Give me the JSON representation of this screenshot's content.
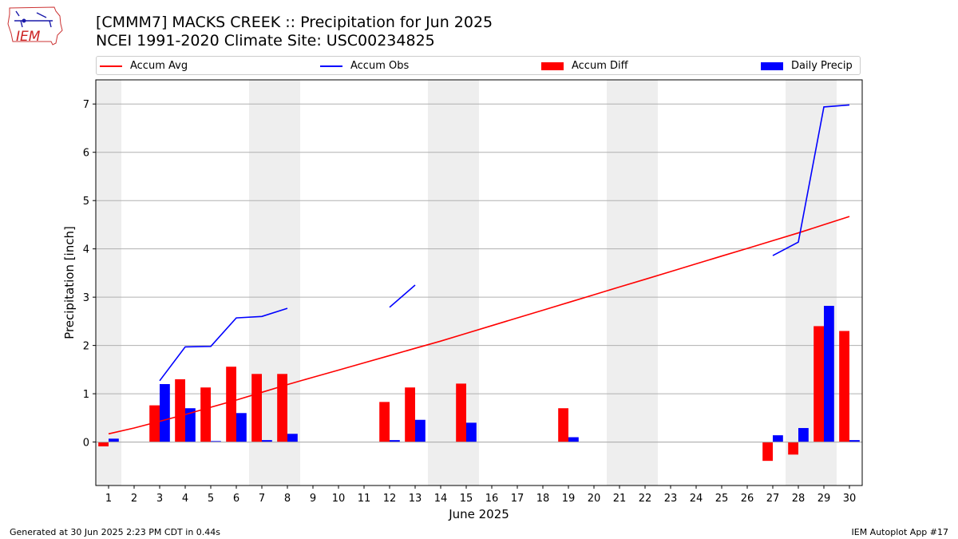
{
  "title_line1": "[CMMM7] MACKS CREEK :: Precipitation for Jun 2025",
  "title_line2": "NCEI 1991-2020 Climate Site: USC00234825",
  "logo_text": "IEM",
  "footer_left": "Generated at 30 Jun 2025 2:23 PM CDT in 0.44s",
  "footer_right": "IEM Autoplot App #17",
  "colors": {
    "avg": "#ff0000",
    "obs": "#0000ff",
    "diff": "#ff0000",
    "daily": "#0000ff",
    "weekend_shade": "#eeeeee",
    "grid": "#b0b0b0"
  },
  "chart_data": {
    "type": "bar",
    "title": "[CMMM7] MACKS CREEK :: Precipitation for Jun 2025",
    "subtitle": "NCEI 1991-2020 Climate Site: USC00234825",
    "xlabel": "June 2025",
    "ylabel": "Precipitation [inch]",
    "ylim": [
      -0.9,
      7.5
    ],
    "yticks": [
      0,
      1,
      2,
      3,
      4,
      5,
      6,
      7
    ],
    "grid": "horizontal",
    "legend_position": "top",
    "x": [
      1,
      2,
      3,
      4,
      5,
      6,
      7,
      8,
      9,
      10,
      11,
      12,
      13,
      14,
      15,
      16,
      17,
      18,
      19,
      20,
      21,
      22,
      23,
      24,
      25,
      26,
      27,
      28,
      29,
      30
    ],
    "weekend_days": [
      1,
      7,
      8,
      14,
      15,
      21,
      22,
      28,
      29
    ],
    "series": [
      {
        "name": "Accum Avg",
        "kind": "line",
        "values": [
          0.17,
          0.29,
          0.43,
          0.57,
          0.72,
          0.87,
          1.03,
          1.19,
          1.34,
          1.49,
          1.64,
          1.79,
          1.94,
          2.09,
          2.25,
          2.41,
          2.57,
          2.73,
          2.89,
          3.05,
          3.21,
          3.37,
          3.53,
          3.69,
          3.85,
          4.01,
          4.17,
          4.33,
          4.5,
          4.67
        ]
      },
      {
        "name": "Accum Obs",
        "kind": "line",
        "values": [
          null,
          null,
          1.27,
          1.97,
          1.98,
          2.57,
          2.6,
          2.77,
          null,
          null,
          null,
          2.79,
          3.25,
          null,
          null,
          null,
          null,
          null,
          null,
          null,
          null,
          null,
          null,
          null,
          null,
          null,
          3.86,
          4.14,
          6.94,
          6.98
        ]
      },
      {
        "name": "Accum Diff",
        "kind": "bar",
        "values": [
          -0.09,
          null,
          0.76,
          1.3,
          1.13,
          1.56,
          1.41,
          1.41,
          null,
          null,
          null,
          0.83,
          1.13,
          null,
          1.21,
          null,
          null,
          null,
          0.7,
          null,
          null,
          null,
          null,
          null,
          null,
          null,
          -0.39,
          -0.26,
          2.4,
          2.3
        ]
      },
      {
        "name": "Daily Precip",
        "kind": "bar",
        "values": [
          0.07,
          null,
          1.2,
          0.7,
          0.02,
          0.6,
          0.04,
          0.17,
          null,
          null,
          null,
          0.04,
          0.46,
          null,
          0.4,
          null,
          null,
          null,
          0.1,
          null,
          null,
          null,
          null,
          null,
          null,
          null,
          0.14,
          0.29,
          2.82,
          0.04
        ]
      }
    ]
  }
}
